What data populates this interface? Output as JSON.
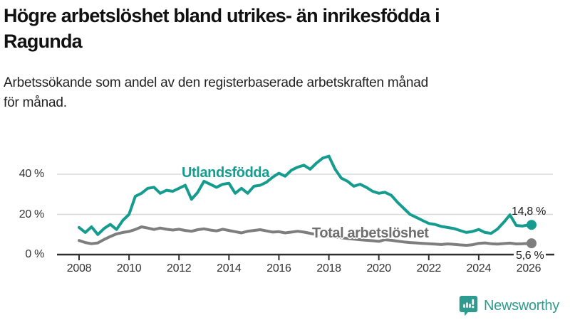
{
  "header": {
    "title_lines": [
      "Högre arbetslöshet bland utrikes- än inrikesfödda i",
      "Ragunda"
    ],
    "subtitle_lines": [
      "Arbetssökande som andel av den registerbaserade arbetskraften månad",
      "för månad."
    ]
  },
  "chart_data": {
    "type": "line",
    "title": "Högre arbetslöshet bland utrikes- än inrikesfödda i Ragunda",
    "subtitle": "Arbetssökande som andel av den registerbaserade arbetskraften månad för månad.",
    "xlabel": "",
    "ylabel": "",
    "ylim": [
      0,
      50
    ],
    "xlim": [
      2007.3,
      2027
    ],
    "grid": true,
    "legend_position": "inline-labels",
    "y_ticks": [
      {
        "value": 0,
        "label": "0 %"
      },
      {
        "value": 20,
        "label": "20 %"
      },
      {
        "value": 40,
        "label": "40 %"
      }
    ],
    "x_ticks": [
      {
        "value": 2008,
        "label": "2008"
      },
      {
        "value": 2010,
        "label": "2010"
      },
      {
        "value": 2012,
        "label": "2012"
      },
      {
        "value": 2014,
        "label": "2014"
      },
      {
        "value": 2016,
        "label": "2016"
      },
      {
        "value": 2018,
        "label": "2018"
      },
      {
        "value": 2020,
        "label": "2020"
      },
      {
        "value": 2022,
        "label": "2022"
      },
      {
        "value": 2024,
        "label": "2024"
      },
      {
        "value": 2026,
        "label": "2026"
      }
    ],
    "x": [
      2008,
      2008.25,
      2008.5,
      2008.75,
      2009,
      2009.25,
      2009.5,
      2009.75,
      2010,
      2010.25,
      2010.5,
      2010.75,
      2011,
      2011.25,
      2011.5,
      2011.75,
      2012,
      2012.25,
      2012.5,
      2012.75,
      2013,
      2013.25,
      2013.5,
      2013.75,
      2014,
      2014.25,
      2014.5,
      2014.75,
      2015,
      2015.25,
      2015.5,
      2015.75,
      2016,
      2016.25,
      2016.5,
      2016.75,
      2017,
      2017.25,
      2017.5,
      2017.75,
      2018,
      2018.25,
      2018.5,
      2018.75,
      2019,
      2019.25,
      2019.5,
      2019.75,
      2020,
      2020.25,
      2020.5,
      2020.75,
      2021,
      2021.25,
      2021.5,
      2021.75,
      2022,
      2022.25,
      2022.5,
      2022.75,
      2023,
      2023.25,
      2023.5,
      2023.75,
      2024,
      2024.25,
      2024.5,
      2024.75,
      2025,
      2025.25,
      2025.5,
      2025.75,
      2026
    ],
    "series": [
      {
        "name": "Utlandsfödda",
        "color": "#159C8E",
        "end_label": "14,8 %",
        "last_value": 14.8,
        "values": [
          13.5,
          11.0,
          13.8,
          10.0,
          13.0,
          15.0,
          12.5,
          17.0,
          20.0,
          29.0,
          30.5,
          33.0,
          33.5,
          30.5,
          32.0,
          31.5,
          33.0,
          34.5,
          27.5,
          31.0,
          36.5,
          35.0,
          33.5,
          35.0,
          35.5,
          30.5,
          33.0,
          30.5,
          34.0,
          34.5,
          36.0,
          38.5,
          40.5,
          39.0,
          42.0,
          43.5,
          44.5,
          42.5,
          45.5,
          48.0,
          49.0,
          42.5,
          38.0,
          36.5,
          34.0,
          35.0,
          33.5,
          31.5,
          30.5,
          31.0,
          29.5,
          26.0,
          23.0,
          20.0,
          18.5,
          17.0,
          15.5,
          15.0,
          14.0,
          13.5,
          13.0,
          12.0,
          11.0,
          11.5,
          12.5,
          11.0,
          10.6,
          12.7,
          16.0,
          19.8,
          14.5,
          14.2,
          14.8
        ]
      },
      {
        "name": "Total arbetslöshet",
        "color": "#7E7E7E",
        "end_label": "5,6 %",
        "last_value": 5.6,
        "values": [
          7.0,
          6.0,
          5.4,
          5.8,
          7.5,
          9.0,
          10.3,
          11.0,
          11.5,
          12.5,
          13.8,
          13.2,
          12.5,
          13.2,
          12.6,
          12.2,
          12.6,
          12.0,
          11.6,
          12.4,
          12.8,
          12.2,
          11.8,
          12.6,
          12.0,
          11.4,
          10.8,
          11.6,
          12.0,
          12.4,
          11.8,
          11.2,
          11.4,
          10.8,
          11.2,
          11.6,
          11.2,
          10.6,
          10.0,
          9.6,
          9.2,
          8.8,
          8.4,
          8.0,
          7.7,
          7.4,
          7.1,
          6.9,
          6.6,
          7.4,
          7.1,
          6.7,
          6.3,
          6.0,
          5.8,
          5.6,
          5.4,
          5.2,
          5.0,
          5.3,
          5.1,
          4.8,
          4.6,
          4.9,
          5.6,
          5.8,
          5.4,
          5.2,
          5.5,
          5.7,
          5.3,
          5.4,
          5.6
        ]
      }
    ]
  },
  "footer": {
    "brand": "Newsworthy",
    "logo_icon": "newsworthy-speech-bubble-bar-chart-icon"
  },
  "colors": {
    "accent_teal": "#159C8E",
    "series_gray": "#7E7E7E",
    "logo_teal": "#2D9C8F",
    "grid": "#D9D9D9",
    "axis": "#2E2E2E",
    "text_dark": "#111111"
  }
}
